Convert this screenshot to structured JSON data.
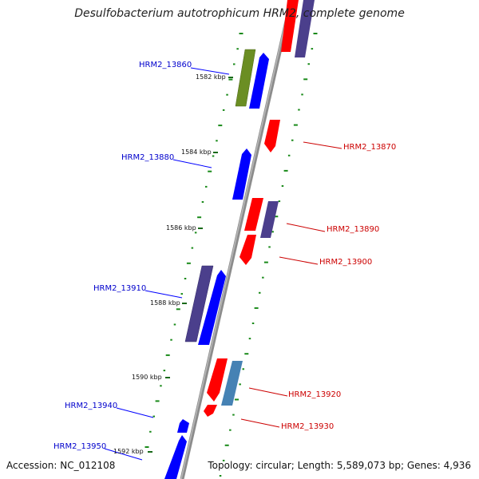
{
  "title": "Desulfobacterium autotrophicum HRM2, complete genome",
  "accession": "Accession: NC_012108",
  "summary": "Topology: circular; Length: 5,589,073 bp; Genes: 4,936",
  "colors": {
    "backbone": "#8c8c8c",
    "forward_gene": "#0000ff",
    "reverse_gene": "#ff0000",
    "purple_gene": "#4b3f8c",
    "olive_gene": "#6b8e23",
    "steelblue_gene": "#4682b4",
    "gc_skew_dots": "#1a8a1a",
    "forward_label": "#0000cc",
    "reverse_label": "#cc0000"
  },
  "ticks": [
    "1582 kbp",
    "1584 kbp",
    "1586 kbp",
    "1588 kbp",
    "1590 kbp",
    "1592 kbp"
  ],
  "genes": [
    {
      "label": "HRM2_13860",
      "strand": "forward"
    },
    {
      "label": "HRM2_13870",
      "strand": "reverse"
    },
    {
      "label": "HRM2_13880",
      "strand": "forward"
    },
    {
      "label": "HRM2_13890",
      "strand": "reverse"
    },
    {
      "label": "HRM2_13900",
      "strand": "reverse"
    },
    {
      "label": "HRM2_13910",
      "strand": "forward"
    },
    {
      "label": "HRM2_13920",
      "strand": "reverse"
    },
    {
      "label": "HRM2_13930",
      "strand": "reverse"
    },
    {
      "label": "HRM2_13940",
      "strand": "forward"
    },
    {
      "label": "HRM2_13950",
      "strand": "forward"
    }
  ]
}
